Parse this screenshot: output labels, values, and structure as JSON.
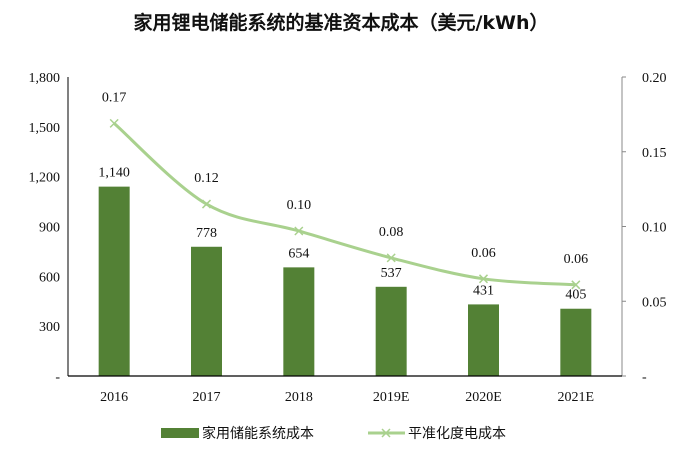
{
  "chart_data": {
    "type": "bar+line",
    "title": "家用锂电储能系统的基准资本成本（美元/kWh）",
    "categories": [
      "2016",
      "2017",
      "2018",
      "2019E",
      "2020E",
      "2021E"
    ],
    "series": [
      {
        "name": "家用储能系统成本",
        "type": "bar",
        "axis": "left",
        "color": "#538135",
        "values": [
          1140,
          778,
          654,
          537,
          431,
          405
        ],
        "labels": [
          "1,140",
          "778",
          "654",
          "537",
          "431",
          "405"
        ]
      },
      {
        "name": "平准化度电成本",
        "type": "line",
        "axis": "right",
        "color": "#a9d18e",
        "values": [
          0.169,
          0.115,
          0.097,
          0.079,
          0.065,
          0.061
        ],
        "labels": [
          "0.17",
          "0.12",
          "0.10",
          "0.08",
          "0.06",
          "0.06"
        ]
      }
    ],
    "left_axis": {
      "ylim": [
        0,
        1800
      ],
      "ticks": [
        0,
        300,
        600,
        900,
        1200,
        1500,
        1800
      ],
      "tick_labels": [
        "-",
        "300",
        "600",
        "900",
        "1,200",
        "1,500",
        "1,800"
      ]
    },
    "right_axis": {
      "ylim": [
        0,
        0.2
      ],
      "ticks": [
        0,
        0.05,
        0.1,
        0.15,
        0.2
      ],
      "tick_labels": [
        "-",
        "0.05",
        "0.10",
        "0.15",
        "0.20"
      ]
    },
    "legend": "bottom",
    "grid": false
  }
}
